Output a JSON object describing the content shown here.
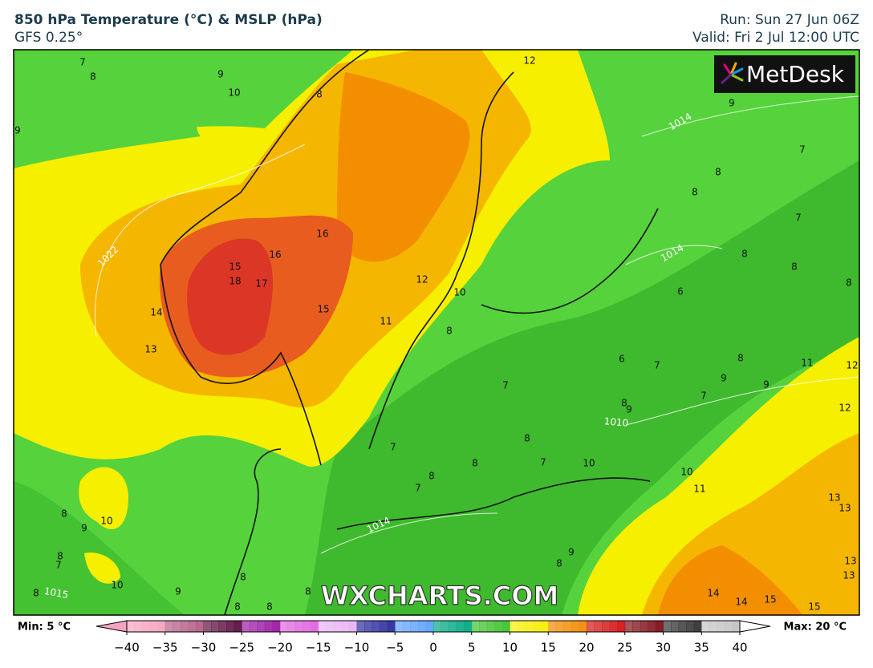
{
  "header": {
    "title": "850 hPa Temperature (°C) & MSLP (hPa)",
    "subtitle": "GFS 0.25°",
    "run": "Run: Sun 27 Jun 06Z",
    "valid": "Valid: Fri 2 Jul 12:00 UTC"
  },
  "logo": "MetDesk",
  "watermark": "WXCHARTS.COM",
  "map": {
    "contour_labels": [
      7,
      8,
      9,
      10,
      9,
      12,
      9,
      8,
      7,
      8,
      8,
      7,
      8,
      8,
      8,
      6,
      16,
      16,
      15,
      18,
      17,
      14,
      13,
      15,
      12,
      10,
      11,
      8,
      6,
      7,
      8,
      9,
      9,
      7,
      11,
      12,
      8,
      9,
      12,
      7,
      7,
      8,
      8,
      7,
      10,
      8,
      7,
      10,
      11,
      13,
      13,
      8,
      9,
      10,
      8,
      7,
      10,
      8,
      9,
      8,
      8,
      8,
      8,
      9,
      8,
      13,
      13,
      14,
      14,
      15,
      15
    ],
    "isobar_labels": [
      1014,
      1022,
      1014,
      1010,
      1014,
      1015
    ]
  },
  "colorbar": {
    "min_label": "Min: 5 °C",
    "max_label": "Max: 20 °C",
    "range": [
      -40,
      40
    ],
    "ticks": [
      {
        "value": -40,
        "label": "−40"
      },
      {
        "value": -35,
        "label": "−35"
      },
      {
        "value": -30,
        "label": "−30"
      },
      {
        "value": -25,
        "label": "−25"
      },
      {
        "value": -20,
        "label": "−20"
      },
      {
        "value": -15,
        "label": "−15"
      },
      {
        "value": -10,
        "label": "−10"
      },
      {
        "value": -5,
        "label": "−5"
      },
      0,
      5,
      10,
      15,
      20,
      25,
      30,
      35,
      40
    ],
    "colors": [
      "#f5a3bd",
      "#b65e86",
      "#5e1040",
      "#9c1aa6",
      "#e064e0",
      "#e8b4f2",
      "#2c2c9e",
      "#5ea2ff",
      "#00aa84",
      "#3fc22f",
      "#f6ee00",
      "#f08a00",
      "#d41414",
      "#7e1018",
      "#333333",
      "#c4c4c4"
    ]
  }
}
